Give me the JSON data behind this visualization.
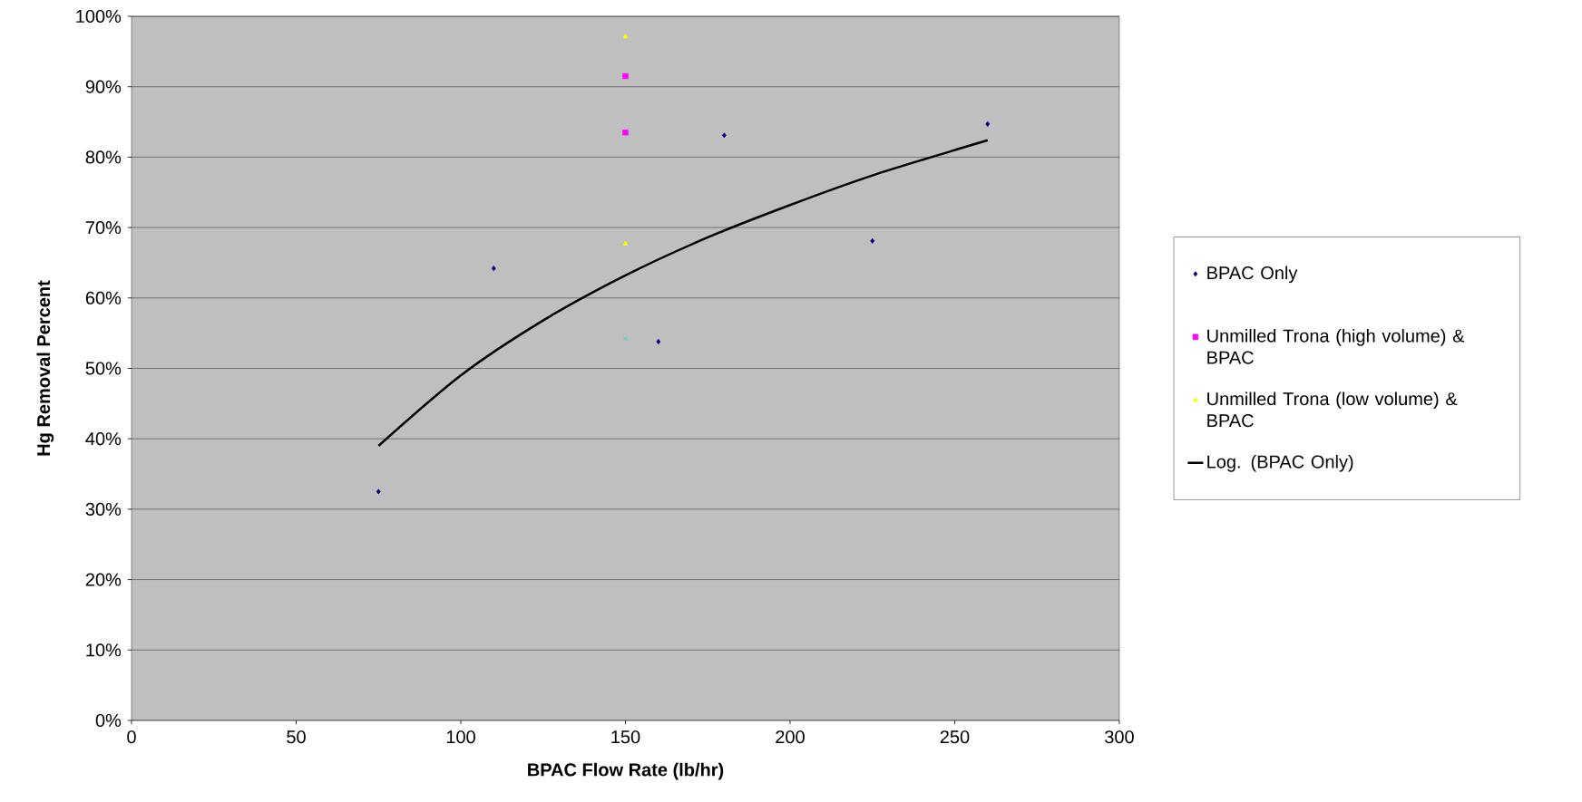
{
  "chart_data": {
    "type": "scatter",
    "xlabel": "BPAC Flow Rate (lb/hr)",
    "ylabel": "Hg Removal Percent",
    "xlim": [
      0,
      300
    ],
    "xticks": [
      0,
      50,
      100,
      150,
      200,
      250,
      300
    ],
    "ylim": [
      0,
      100
    ],
    "yticks": [
      {
        "value": 0,
        "label": "0%"
      },
      {
        "value": 10,
        "label": "10%"
      },
      {
        "value": 20,
        "label": "20%"
      },
      {
        "value": 30,
        "label": "30%"
      },
      {
        "value": 40,
        "label": "40%"
      },
      {
        "value": 50,
        "label": "50%"
      },
      {
        "value": 60,
        "label": "60%"
      },
      {
        "value": 70,
        "label": "70%"
      },
      {
        "value": 80,
        "label": "80%"
      },
      {
        "value": 90,
        "label": "90%"
      },
      {
        "value": 100,
        "label": "100%"
      }
    ],
    "grid": "y",
    "legend": "right",
    "series": [
      {
        "name": "BPAC Only",
        "color": "#000080",
        "marker": "diamond",
        "x": [
          75,
          110,
          160,
          180,
          225,
          260
        ],
        "values": [
          32.5,
          64.2,
          53.8,
          83.1,
          68.1,
          84.7
        ]
      },
      {
        "name": "Unmilled Trona (high volume) & BPAC",
        "color": "#ff00ff",
        "marker": "square",
        "x": [
          150,
          150
        ],
        "values": [
          91.5,
          83.5
        ]
      },
      {
        "name": "Unmilled Trona (low volume) & BPAC",
        "color": "#ffff00",
        "marker": "triangle",
        "x": [
          150,
          150
        ],
        "values": [
          97.1,
          67.7
        ]
      },
      {
        "color": "#33cccc",
        "marker": "cross",
        "x": [
          150
        ],
        "values": [
          54.2
        ]
      },
      {
        "name": "Log. (BPAC Only)",
        "type": "line",
        "color": "#000000",
        "marker": "none",
        "line_style": "solid",
        "x": [
          75,
          100,
          125,
          150,
          175,
          200,
          225,
          250,
          260
        ],
        "values": [
          39.0,
          49.0,
          56.8,
          63.2,
          68.6,
          73.2,
          77.4,
          81.0,
          82.4
        ]
      }
    ]
  }
}
